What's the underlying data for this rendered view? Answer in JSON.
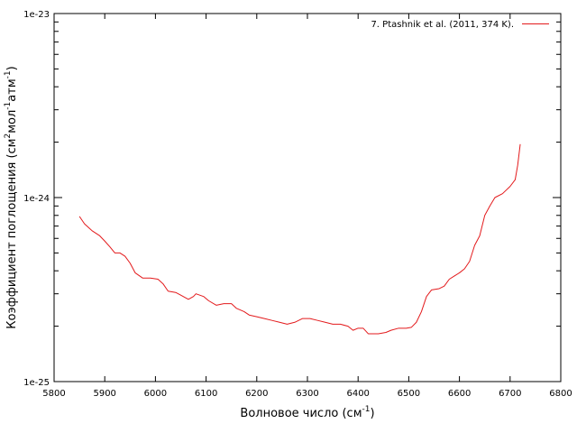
{
  "chart_data": {
    "type": "line",
    "title": "",
    "xlabel": {
      "base": "Волновое число (см",
      "sup": "-1",
      "tail": ")"
    },
    "ylabel": {
      "parts": [
        {
          "t": "Коэффициент поглощения (см"
        },
        {
          "t": "2",
          "sup": true
        },
        {
          "t": "мол"
        },
        {
          "t": "-1",
          "sup": true
        },
        {
          "t": "атм"
        },
        {
          "t": "-1",
          "sup": true
        },
        {
          "t": ")"
        }
      ]
    },
    "xlim": [
      5800,
      6800
    ],
    "ylim": [
      1e-25,
      1e-23
    ],
    "yscale": "log",
    "x_ticks": [
      "5800",
      "5900",
      "6000",
      "6100",
      "6200",
      "6300",
      "6400",
      "6500",
      "6600",
      "6700",
      "6800"
    ],
    "y_ticks": [
      {
        "value": 1e-25,
        "label": "1e-25"
      },
      {
        "value": 1e-24,
        "label": "1e-24"
      },
      {
        "value": 1e-23,
        "label": "1e-23"
      }
    ],
    "grid": false,
    "legend_position": "top-right",
    "series": [
      {
        "name": "7. Ptashnik et al. (2011, 374 K).",
        "color": "#e31a1c",
        "points": [
          [
            5850,
            7.9e-25
          ],
          [
            5860,
            7.2e-25
          ],
          [
            5875,
            6.6e-25
          ],
          [
            5890,
            6.2e-25
          ],
          [
            5900,
            5.8e-25
          ],
          [
            5910,
            5.4e-25
          ],
          [
            5920,
            5e-25
          ],
          [
            5930,
            5e-25
          ],
          [
            5940,
            4.8e-25
          ],
          [
            5950,
            4.4e-25
          ],
          [
            5960,
            3.9e-25
          ],
          [
            5975,
            3.65e-25
          ],
          [
            5990,
            3.65e-25
          ],
          [
            6005,
            3.6e-25
          ],
          [
            6015,
            3.4e-25
          ],
          [
            6025,
            3.1e-25
          ],
          [
            6040,
            3.05e-25
          ],
          [
            6050,
            2.95e-25
          ],
          [
            6065,
            2.8e-25
          ],
          [
            6075,
            2.9e-25
          ],
          [
            6080,
            3e-25
          ],
          [
            6095,
            2.9e-25
          ],
          [
            6105,
            2.75e-25
          ],
          [
            6120,
            2.6e-25
          ],
          [
            6135,
            2.65e-25
          ],
          [
            6150,
            2.65e-25
          ],
          [
            6160,
            2.5e-25
          ],
          [
            6175,
            2.4e-25
          ],
          [
            6185,
            2.3e-25
          ],
          [
            6200,
            2.25e-25
          ],
          [
            6215,
            2.2e-25
          ],
          [
            6230,
            2.15e-25
          ],
          [
            6245,
            2.1e-25
          ],
          [
            6260,
            2.05e-25
          ],
          [
            6275,
            2.1e-25
          ],
          [
            6290,
            2.2e-25
          ],
          [
            6305,
            2.2e-25
          ],
          [
            6320,
            2.15e-25
          ],
          [
            6335,
            2.1e-25
          ],
          [
            6350,
            2.05e-25
          ],
          [
            6365,
            2.05e-25
          ],
          [
            6380,
            2e-25
          ],
          [
            6390,
            1.9e-25
          ],
          [
            6400,
            1.95e-25
          ],
          [
            6410,
            1.95e-25
          ],
          [
            6420,
            1.82e-25
          ],
          [
            6440,
            1.82e-25
          ],
          [
            6455,
            1.85e-25
          ],
          [
            6465,
            1.9e-25
          ],
          [
            6480,
            1.95e-25
          ],
          [
            6495,
            1.95e-25
          ],
          [
            6505,
            1.97e-25
          ],
          [
            6515,
            2.1e-25
          ],
          [
            6525,
            2.4e-25
          ],
          [
            6535,
            2.9e-25
          ],
          [
            6545,
            3.15e-25
          ],
          [
            6560,
            3.2e-25
          ],
          [
            6570,
            3.3e-25
          ],
          [
            6580,
            3.6e-25
          ],
          [
            6590,
            3.75e-25
          ],
          [
            6600,
            3.9e-25
          ],
          [
            6610,
            4.1e-25
          ],
          [
            6620,
            4.5e-25
          ],
          [
            6630,
            5.5e-25
          ],
          [
            6640,
            6.2e-25
          ],
          [
            6650,
            8e-25
          ],
          [
            6660,
            9e-25
          ],
          [
            6670,
            1e-24
          ],
          [
            6685,
            1.05e-24
          ],
          [
            6700,
            1.15e-24
          ],
          [
            6710,
            1.25e-24
          ],
          [
            6715,
            1.5e-24
          ],
          [
            6720,
            1.95e-24
          ]
        ]
      }
    ]
  }
}
